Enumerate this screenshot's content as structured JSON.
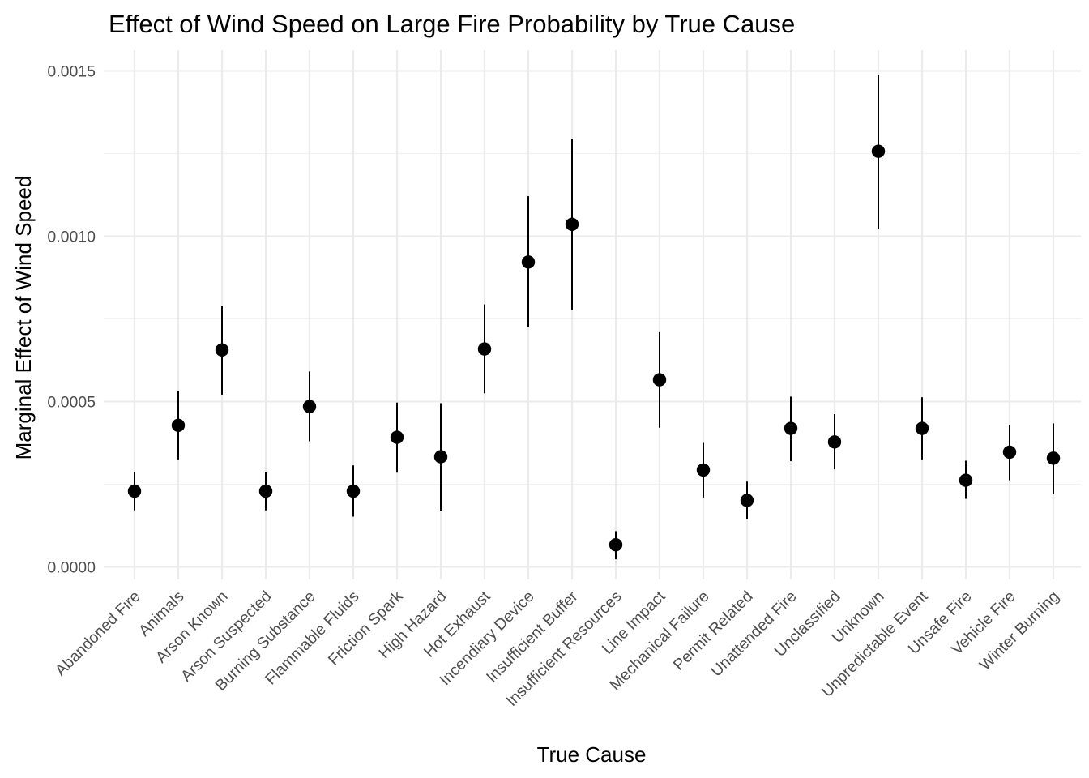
{
  "chart_data": {
    "type": "scatter",
    "title": "Effect of Wind Speed on Large Fire Probability by True Cause",
    "xlabel": "True Cause",
    "ylabel": "Marginal Effect of Wind Speed",
    "ylim": [
      -5e-05,
      0.00152
    ],
    "yticks": [
      0.0,
      0.0005,
      0.001,
      0.0015
    ],
    "ytick_labels": [
      "0.0000",
      "0.0005",
      "0.0010",
      "0.0015"
    ],
    "grid": true,
    "error_bars": true,
    "point_color": "#000000",
    "categories": [
      "Abandoned Fire",
      "Animals",
      "Arson Known",
      "Arson Suspected",
      "Burning Substance",
      "Flammable Fluids",
      "Friction Spark",
      "High Hazard",
      "Hot Exhaust",
      "Incendiary Device",
      "Insufficient Buffer",
      "Insufficient Resources",
      "Line Impact",
      "Mechanical Failure",
      "Permit Related",
      "Unattended Fire",
      "Unclassified",
      "Unknown",
      "Unpredictable Event",
      "Unsafe Fire",
      "Vehicle Fire",
      "Winter Burning"
    ],
    "values": [
      0.000229,
      0.000428,
      0.000656,
      0.000229,
      0.000485,
      0.000229,
      0.000392,
      0.000333,
      0.000659,
      0.000922,
      0.001036,
      6.7e-05,
      0.000566,
      0.000293,
      0.000201,
      0.000419,
      0.000378,
      0.001257,
      0.000419,
      0.000262,
      0.000347,
      0.000329
    ],
    "lower": [
      0.000171,
      0.000325,
      0.000521,
      0.000171,
      0.00038,
      0.000152,
      0.000285,
      0.000168,
      0.000525,
      0.000726,
      0.000777,
      2.3e-05,
      0.000421,
      0.00021,
      0.000145,
      0.00032,
      0.000295,
      0.001021,
      0.000325,
      0.000206,
      0.000262,
      0.00022
    ],
    "upper": [
      0.000288,
      0.000532,
      0.00079,
      0.000288,
      0.000591,
      0.000307,
      0.000497,
      0.000495,
      0.000794,
      0.001121,
      0.001295,
      0.000108,
      0.00071,
      0.000375,
      0.000258,
      0.000515,
      0.000462,
      0.001488,
      0.000513,
      0.000321,
      0.00043,
      0.000434
    ]
  }
}
